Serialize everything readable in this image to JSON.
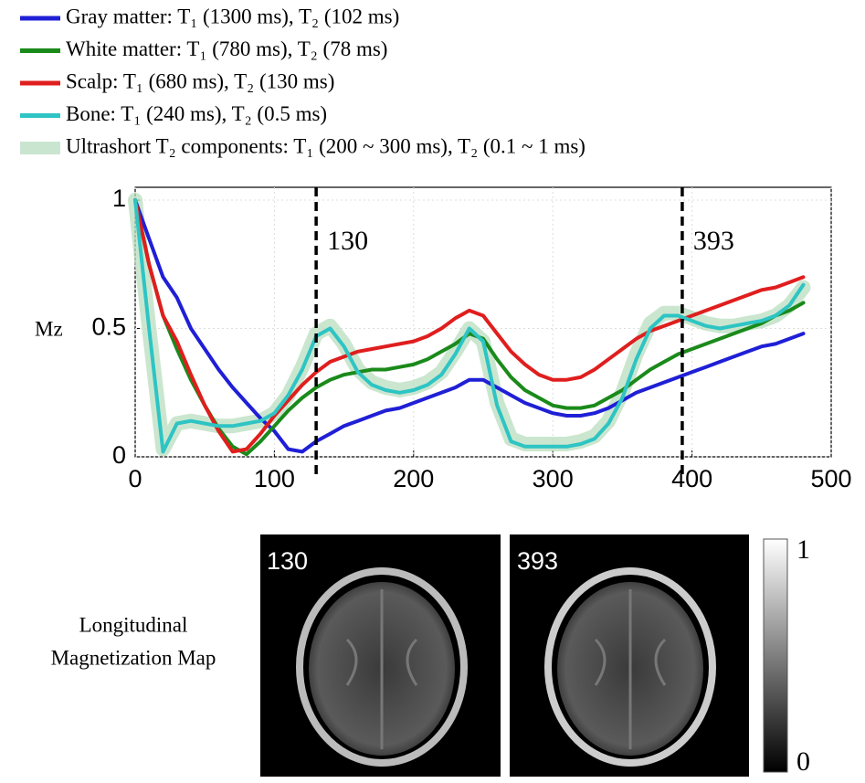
{
  "chart_data": {
    "type": "line",
    "ylabel": "Mz",
    "x": [
      0,
      10,
      20,
      30,
      40,
      50,
      60,
      70,
      80,
      90,
      100,
      110,
      120,
      130,
      140,
      150,
      160,
      170,
      180,
      190,
      200,
      210,
      220,
      230,
      240,
      250,
      260,
      270,
      280,
      290,
      300,
      310,
      320,
      330,
      340,
      350,
      360,
      370,
      380,
      390,
      400,
      410,
      420,
      430,
      440,
      450,
      460,
      470,
      480
    ],
    "series": [
      {
        "name": "Gray matter: T₁ (1300 ms), T₂ (102 ms)",
        "color": "#1f1fd6",
        "values": [
          1.0,
          0.85,
          0.7,
          0.62,
          0.5,
          0.42,
          0.34,
          0.27,
          0.21,
          0.15,
          0.1,
          0.03,
          0.02,
          0.06,
          0.09,
          0.12,
          0.14,
          0.16,
          0.18,
          0.19,
          0.21,
          0.23,
          0.25,
          0.27,
          0.3,
          0.3,
          0.27,
          0.24,
          0.21,
          0.19,
          0.17,
          0.16,
          0.16,
          0.17,
          0.19,
          0.22,
          0.25,
          0.27,
          0.29,
          0.31,
          0.33,
          0.35,
          0.37,
          0.39,
          0.41,
          0.43,
          0.44,
          0.46,
          0.48
        ]
      },
      {
        "name": "White matter: T₁ (780 ms), T₂ (78 ms)",
        "color": "#1a8a1a",
        "values": [
          1.0,
          0.75,
          0.55,
          0.42,
          0.3,
          0.2,
          0.11,
          0.04,
          0.01,
          0.06,
          0.12,
          0.18,
          0.23,
          0.27,
          0.3,
          0.32,
          0.33,
          0.34,
          0.34,
          0.35,
          0.36,
          0.38,
          0.41,
          0.44,
          0.48,
          0.46,
          0.38,
          0.31,
          0.26,
          0.23,
          0.2,
          0.19,
          0.19,
          0.2,
          0.23,
          0.26,
          0.3,
          0.34,
          0.37,
          0.4,
          0.42,
          0.44,
          0.46,
          0.48,
          0.5,
          0.52,
          0.55,
          0.57,
          0.6
        ]
      },
      {
        "name": "Scalp: T₁ (680 ms), T₂ (130 ms)",
        "color": "#e01e1e",
        "values": [
          1.0,
          0.75,
          0.55,
          0.45,
          0.32,
          0.2,
          0.1,
          0.02,
          0.03,
          0.09,
          0.16,
          0.22,
          0.28,
          0.33,
          0.37,
          0.39,
          0.41,
          0.42,
          0.43,
          0.44,
          0.45,
          0.47,
          0.5,
          0.54,
          0.57,
          0.55,
          0.48,
          0.41,
          0.36,
          0.32,
          0.3,
          0.3,
          0.31,
          0.34,
          0.38,
          0.42,
          0.46,
          0.49,
          0.51,
          0.53,
          0.55,
          0.57,
          0.59,
          0.61,
          0.63,
          0.65,
          0.66,
          0.68,
          0.7
        ]
      },
      {
        "name": "Bone: T₁ (240 ms), T₂ (0.5 ms)",
        "color": "#2ec4c4",
        "values": [
          1.0,
          0.5,
          0.02,
          0.13,
          0.14,
          0.13,
          0.12,
          0.12,
          0.13,
          0.14,
          0.17,
          0.24,
          0.34,
          0.47,
          0.5,
          0.43,
          0.33,
          0.28,
          0.26,
          0.25,
          0.26,
          0.28,
          0.32,
          0.4,
          0.5,
          0.45,
          0.2,
          0.06,
          0.04,
          0.04,
          0.04,
          0.04,
          0.05,
          0.07,
          0.13,
          0.23,
          0.38,
          0.5,
          0.55,
          0.55,
          0.53,
          0.51,
          0.5,
          0.51,
          0.52,
          0.53,
          0.55,
          0.59,
          0.67
        ]
      },
      {
        "name": "Ultrashort T₂ components: T₁ (200 ~ 300 ms), T₂ (0.1 ~ 1 ms)",
        "color": "#b9ddbf",
        "style": "band",
        "values": [
          1.0,
          0.5,
          0.03,
          0.13,
          0.14,
          0.13,
          0.12,
          0.12,
          0.13,
          0.14,
          0.17,
          0.24,
          0.35,
          0.48,
          0.51,
          0.44,
          0.34,
          0.29,
          0.27,
          0.26,
          0.27,
          0.29,
          0.33,
          0.41,
          0.5,
          0.45,
          0.21,
          0.07,
          0.05,
          0.05,
          0.05,
          0.05,
          0.06,
          0.08,
          0.14,
          0.25,
          0.4,
          0.52,
          0.56,
          0.56,
          0.54,
          0.52,
          0.51,
          0.51,
          0.52,
          0.53,
          0.55,
          0.59,
          0.66
        ]
      }
    ],
    "xlim": [
      0,
      500
    ],
    "xticks": [
      0,
      100,
      200,
      300,
      400,
      500
    ],
    "ylim": [
      0,
      1.05
    ],
    "yticks": [
      0,
      0.5,
      1
    ],
    "grid": true,
    "vlines": [
      130,
      393
    ]
  },
  "maps": {
    "caption": [
      "Longitudinal",
      "Magnetization Map"
    ],
    "panels": [
      130,
      393
    ],
    "clim": [
      0,
      1
    ]
  }
}
